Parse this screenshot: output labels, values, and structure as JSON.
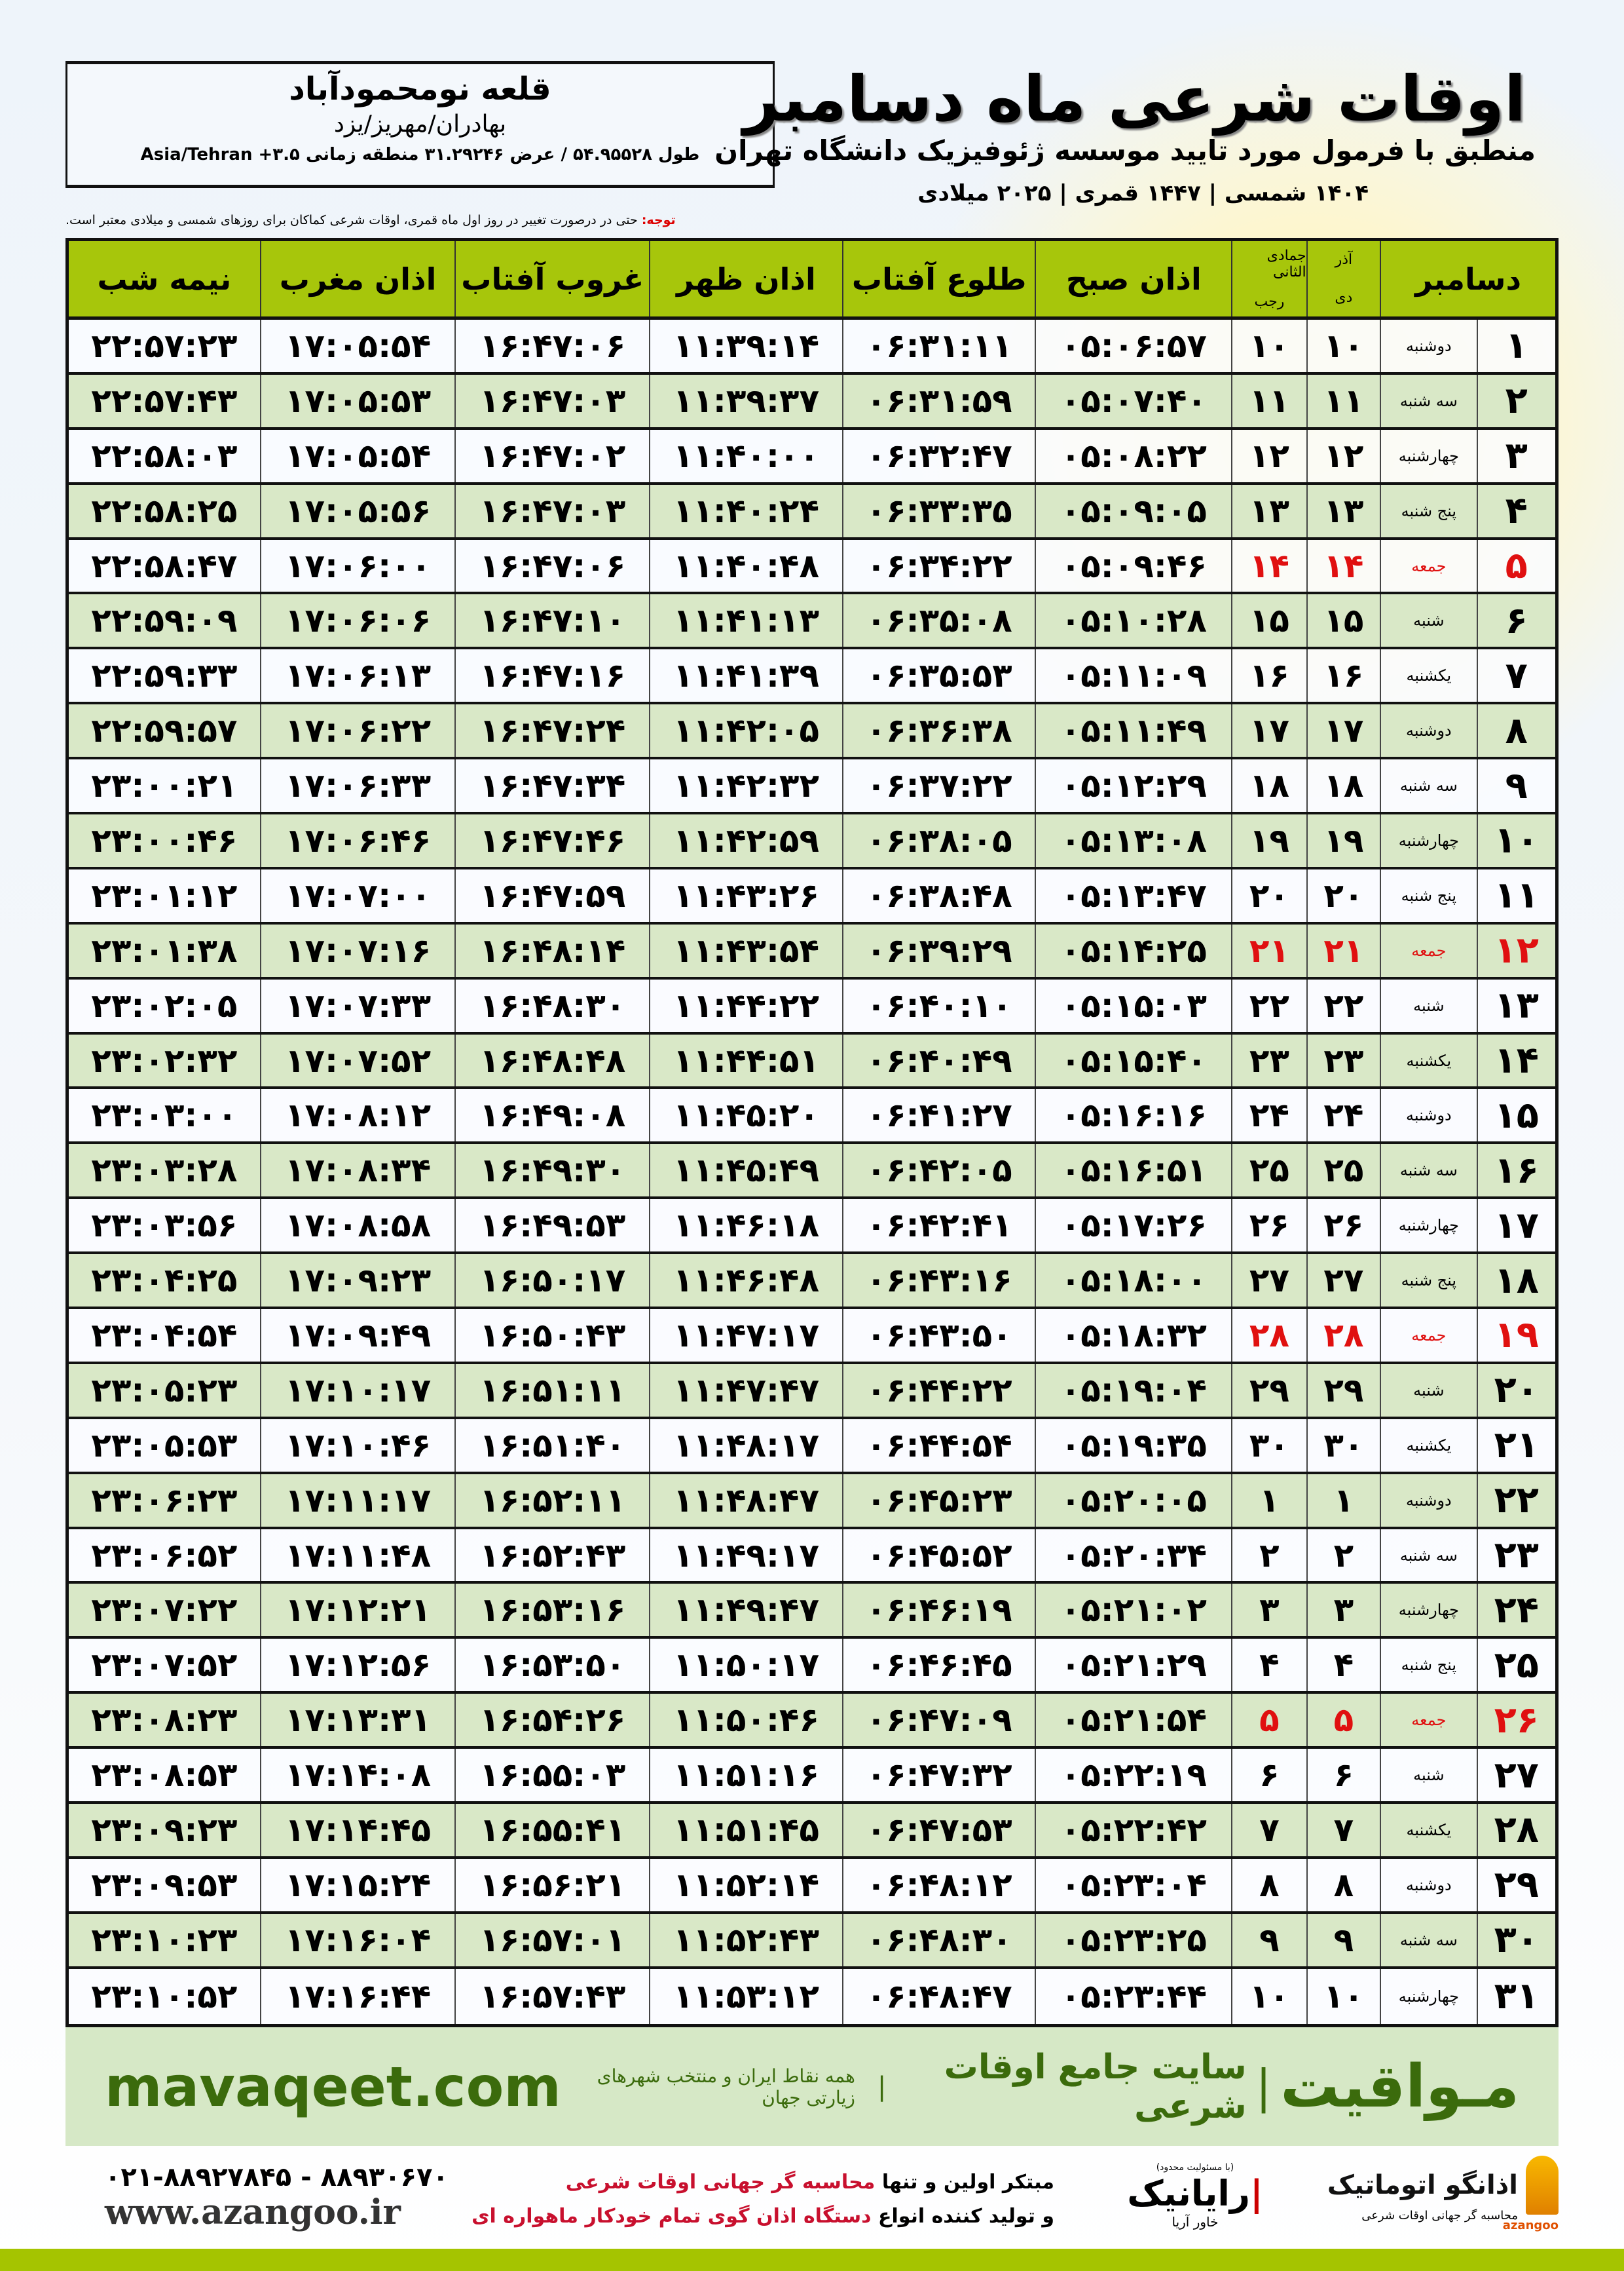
{
  "header": {
    "title": "اوقات شرعی ماه دسامبر",
    "subtitle": "منطبق با فرمول مورد تایید موسسه ژئوفیزیک دانشگاه تهران",
    "dateline": "۱۴۰۴ شمسی | ۱۴۴۷ قمری | ۲۰۲۵ میلادی",
    "location": {
      "city": "قلعه نومحمودآباد",
      "region": "بهادران/مهریز/یزد",
      "coords": "طول ۵۴.۹۵۵۲۸ / عرض ۳۱.۲۹۲۴۶ منطقه زمانی Asia/Tehran +۳.۵"
    },
    "note_label": "توجه:",
    "note": "حتی در درصورت تغییر در روز اول ماه قمری، اوقات شرعی کماکان برای روزهای شمسی و میلادی معتبر است."
  },
  "table": {
    "columns": {
      "day": "دسامبر",
      "dey": "آذر",
      "dey2": "دی",
      "rajab": "جمادی الثانی",
      "rajab2": "رجب",
      "fajr": "اذان صبح",
      "sunrise": "طلوع آفتاب",
      "dhuhr": "اذان ظهر",
      "sunset": "غروب آفتاب",
      "maghrib": "اذان مغرب",
      "midnight": "نیمه شب"
    },
    "holiday_color": "#e01010",
    "rows": [
      {
        "day": "۱",
        "wd": "دوشنبه",
        "dey": "۱۰",
        "rajab": "۱۰",
        "fajr": "۰۵:۰۶:۵۷",
        "sunrise": "۰۶:۳۱:۱۱",
        "dhuhr": "۱۱:۳۹:۱۴",
        "sunset": "۱۶:۴۷:۰۶",
        "maghrib": "۱۷:۰۵:۵۴",
        "midnight": "۲۲:۵۷:۲۳"
      },
      {
        "day": "۲",
        "wd": "سه شنبه",
        "dey": "۱۱",
        "rajab": "۱۱",
        "fajr": "۰۵:۰۷:۴۰",
        "sunrise": "۰۶:۳۱:۵۹",
        "dhuhr": "۱۱:۳۹:۳۷",
        "sunset": "۱۶:۴۷:۰۳",
        "maghrib": "۱۷:۰۵:۵۳",
        "midnight": "۲۲:۵۷:۴۳"
      },
      {
        "day": "۳",
        "wd": "چهارشنبه",
        "dey": "۱۲",
        "rajab": "۱۲",
        "fajr": "۰۵:۰۸:۲۲",
        "sunrise": "۰۶:۳۲:۴۷",
        "dhuhr": "۱۱:۴۰:۰۰",
        "sunset": "۱۶:۴۷:۰۲",
        "maghrib": "۱۷:۰۵:۵۴",
        "midnight": "۲۲:۵۸:۰۳"
      },
      {
        "day": "۴",
        "wd": "پنج شنبه",
        "dey": "۱۳",
        "rajab": "۱۳",
        "fajr": "۰۵:۰۹:۰۵",
        "sunrise": "۰۶:۳۳:۳۵",
        "dhuhr": "۱۱:۴۰:۲۴",
        "sunset": "۱۶:۴۷:۰۳",
        "maghrib": "۱۷:۰۵:۵۶",
        "midnight": "۲۲:۵۸:۲۵"
      },
      {
        "day": "۵",
        "wd": "جمعه",
        "dey": "۱۴",
        "rajab": "۱۴",
        "fajr": "۰۵:۰۹:۴۶",
        "sunrise": "۰۶:۳۴:۲۲",
        "dhuhr": "۱۱:۴۰:۴۸",
        "sunset": "۱۶:۴۷:۰۶",
        "maghrib": "۱۷:۰۶:۰۰",
        "midnight": "۲۲:۵۸:۴۷",
        "holiday": true
      },
      {
        "day": "۶",
        "wd": "شنبه",
        "dey": "۱۵",
        "rajab": "۱۵",
        "fajr": "۰۵:۱۰:۲۸",
        "sunrise": "۰۶:۳۵:۰۸",
        "dhuhr": "۱۱:۴۱:۱۳",
        "sunset": "۱۶:۴۷:۱۰",
        "maghrib": "۱۷:۰۶:۰۶",
        "midnight": "۲۲:۵۹:۰۹"
      },
      {
        "day": "۷",
        "wd": "یکشنبه",
        "dey": "۱۶",
        "rajab": "۱۶",
        "fajr": "۰۵:۱۱:۰۹",
        "sunrise": "۰۶:۳۵:۵۳",
        "dhuhr": "۱۱:۴۱:۳۹",
        "sunset": "۱۶:۴۷:۱۶",
        "maghrib": "۱۷:۰۶:۱۳",
        "midnight": "۲۲:۵۹:۳۳"
      },
      {
        "day": "۸",
        "wd": "دوشنبه",
        "dey": "۱۷",
        "rajab": "۱۷",
        "fajr": "۰۵:۱۱:۴۹",
        "sunrise": "۰۶:۳۶:۳۸",
        "dhuhr": "۱۱:۴۲:۰۵",
        "sunset": "۱۶:۴۷:۲۴",
        "maghrib": "۱۷:۰۶:۲۲",
        "midnight": "۲۲:۵۹:۵۷"
      },
      {
        "day": "۹",
        "wd": "سه شنبه",
        "dey": "۱۸",
        "rajab": "۱۸",
        "fajr": "۰۵:۱۲:۲۹",
        "sunrise": "۰۶:۳۷:۲۲",
        "dhuhr": "۱۱:۴۲:۳۲",
        "sunset": "۱۶:۴۷:۳۴",
        "maghrib": "۱۷:۰۶:۳۳",
        "midnight": "۲۳:۰۰:۲۱"
      },
      {
        "day": "۱۰",
        "wd": "چهارشنبه",
        "dey": "۱۹",
        "rajab": "۱۹",
        "fajr": "۰۵:۱۳:۰۸",
        "sunrise": "۰۶:۳۸:۰۵",
        "dhuhr": "۱۱:۴۲:۵۹",
        "sunset": "۱۶:۴۷:۴۶",
        "maghrib": "۱۷:۰۶:۴۶",
        "midnight": "۲۳:۰۰:۴۶"
      },
      {
        "day": "۱۱",
        "wd": "پنج شنبه",
        "dey": "۲۰",
        "rajab": "۲۰",
        "fajr": "۰۵:۱۳:۴۷",
        "sunrise": "۰۶:۳۸:۴۸",
        "dhuhr": "۱۱:۴۳:۲۶",
        "sunset": "۱۶:۴۷:۵۹",
        "maghrib": "۱۷:۰۷:۰۰",
        "midnight": "۲۳:۰۱:۱۲"
      },
      {
        "day": "۱۲",
        "wd": "جمعه",
        "dey": "۲۱",
        "rajab": "۲۱",
        "fajr": "۰۵:۱۴:۲۵",
        "sunrise": "۰۶:۳۹:۲۹",
        "dhuhr": "۱۱:۴۳:۵۴",
        "sunset": "۱۶:۴۸:۱۴",
        "maghrib": "۱۷:۰۷:۱۶",
        "midnight": "۲۳:۰۱:۳۸",
        "holiday": true
      },
      {
        "day": "۱۳",
        "wd": "شنبه",
        "dey": "۲۲",
        "rajab": "۲۲",
        "fajr": "۰۵:۱۵:۰۳",
        "sunrise": "۰۶:۴۰:۱۰",
        "dhuhr": "۱۱:۴۴:۲۲",
        "sunset": "۱۶:۴۸:۳۰",
        "maghrib": "۱۷:۰۷:۳۳",
        "midnight": "۲۳:۰۲:۰۵"
      },
      {
        "day": "۱۴",
        "wd": "یکشنبه",
        "dey": "۲۳",
        "rajab": "۲۳",
        "fajr": "۰۵:۱۵:۴۰",
        "sunrise": "۰۶:۴۰:۴۹",
        "dhuhr": "۱۱:۴۴:۵۱",
        "sunset": "۱۶:۴۸:۴۸",
        "maghrib": "۱۷:۰۷:۵۲",
        "midnight": "۲۳:۰۲:۳۲"
      },
      {
        "day": "۱۵",
        "wd": "دوشنبه",
        "dey": "۲۴",
        "rajab": "۲۴",
        "fajr": "۰۵:۱۶:۱۶",
        "sunrise": "۰۶:۴۱:۲۷",
        "dhuhr": "۱۱:۴۵:۲۰",
        "sunset": "۱۶:۴۹:۰۸",
        "maghrib": "۱۷:۰۸:۱۲",
        "midnight": "۲۳:۰۳:۰۰"
      },
      {
        "day": "۱۶",
        "wd": "سه شنبه",
        "dey": "۲۵",
        "rajab": "۲۵",
        "fajr": "۰۵:۱۶:۵۱",
        "sunrise": "۰۶:۴۲:۰۵",
        "dhuhr": "۱۱:۴۵:۴۹",
        "sunset": "۱۶:۴۹:۳۰",
        "maghrib": "۱۷:۰۸:۳۴",
        "midnight": "۲۳:۰۳:۲۸"
      },
      {
        "day": "۱۷",
        "wd": "چهارشنبه",
        "dey": "۲۶",
        "rajab": "۲۶",
        "fajr": "۰۵:۱۷:۲۶",
        "sunrise": "۰۶:۴۲:۴۱",
        "dhuhr": "۱۱:۴۶:۱۸",
        "sunset": "۱۶:۴۹:۵۳",
        "maghrib": "۱۷:۰۸:۵۸",
        "midnight": "۲۳:۰۳:۵۶"
      },
      {
        "day": "۱۸",
        "wd": "پنج شنبه",
        "dey": "۲۷",
        "rajab": "۲۷",
        "fajr": "۰۵:۱۸:۰۰",
        "sunrise": "۰۶:۴۳:۱۶",
        "dhuhr": "۱۱:۴۶:۴۸",
        "sunset": "۱۶:۵۰:۱۷",
        "maghrib": "۱۷:۰۹:۲۳",
        "midnight": "۲۳:۰۴:۲۵"
      },
      {
        "day": "۱۹",
        "wd": "جمعه",
        "dey": "۲۸",
        "rajab": "۲۸",
        "fajr": "۰۵:۱۸:۳۲",
        "sunrise": "۰۶:۴۳:۵۰",
        "dhuhr": "۱۱:۴۷:۱۷",
        "sunset": "۱۶:۵۰:۴۳",
        "maghrib": "۱۷:۰۹:۴۹",
        "midnight": "۲۳:۰۴:۵۴",
        "holiday": true
      },
      {
        "day": "۲۰",
        "wd": "شنبه",
        "dey": "۲۹",
        "rajab": "۲۹",
        "fajr": "۰۵:۱۹:۰۴",
        "sunrise": "۰۶:۴۴:۲۲",
        "dhuhr": "۱۱:۴۷:۴۷",
        "sunset": "۱۶:۵۱:۱۱",
        "maghrib": "۱۷:۱۰:۱۷",
        "midnight": "۲۳:۰۵:۲۳"
      },
      {
        "day": "۲۱",
        "wd": "یکشنبه",
        "dey": "۳۰",
        "rajab": "۳۰",
        "fajr": "۰۵:۱۹:۳۵",
        "sunrise": "۰۶:۴۴:۵۴",
        "dhuhr": "۱۱:۴۸:۱۷",
        "sunset": "۱۶:۵۱:۴۰",
        "maghrib": "۱۷:۱۰:۴۶",
        "midnight": "۲۳:۰۵:۵۳"
      },
      {
        "day": "۲۲",
        "wd": "دوشنبه",
        "dey": "۱",
        "rajab": "۱",
        "fajr": "۰۵:۲۰:۰۵",
        "sunrise": "۰۶:۴۵:۲۳",
        "dhuhr": "۱۱:۴۸:۴۷",
        "sunset": "۱۶:۵۲:۱۱",
        "maghrib": "۱۷:۱۱:۱۷",
        "midnight": "۲۳:۰۶:۲۳"
      },
      {
        "day": "۲۳",
        "wd": "سه شنبه",
        "dey": "۲",
        "rajab": "۲",
        "fajr": "۰۵:۲۰:۳۴",
        "sunrise": "۰۶:۴۵:۵۲",
        "dhuhr": "۱۱:۴۹:۱۷",
        "sunset": "۱۶:۵۲:۴۳",
        "maghrib": "۱۷:۱۱:۴۸",
        "midnight": "۲۳:۰۶:۵۲"
      },
      {
        "day": "۲۴",
        "wd": "چهارشنبه",
        "dey": "۳",
        "rajab": "۳",
        "fajr": "۰۵:۲۱:۰۲",
        "sunrise": "۰۶:۴۶:۱۹",
        "dhuhr": "۱۱:۴۹:۴۷",
        "sunset": "۱۶:۵۳:۱۶",
        "maghrib": "۱۷:۱۲:۲۱",
        "midnight": "۲۳:۰۷:۲۲"
      },
      {
        "day": "۲۵",
        "wd": "پنج شنبه",
        "dey": "۴",
        "rajab": "۴",
        "fajr": "۰۵:۲۱:۲۹",
        "sunrise": "۰۶:۴۶:۴۵",
        "dhuhr": "۱۱:۵۰:۱۷",
        "sunset": "۱۶:۵۳:۵۰",
        "maghrib": "۱۷:۱۲:۵۶",
        "midnight": "۲۳:۰۷:۵۲"
      },
      {
        "day": "۲۶",
        "wd": "جمعه",
        "dey": "۵",
        "rajab": "۵",
        "fajr": "۰۵:۲۱:۵۴",
        "sunrise": "۰۶:۴۷:۰۹",
        "dhuhr": "۱۱:۵۰:۴۶",
        "sunset": "۱۶:۵۴:۲۶",
        "maghrib": "۱۷:۱۳:۳۱",
        "midnight": "۲۳:۰۸:۲۳",
        "holiday": true
      },
      {
        "day": "۲۷",
        "wd": "شنبه",
        "dey": "۶",
        "rajab": "۶",
        "fajr": "۰۵:۲۲:۱۹",
        "sunrise": "۰۶:۴۷:۳۲",
        "dhuhr": "۱۱:۵۱:۱۶",
        "sunset": "۱۶:۵۵:۰۳",
        "maghrib": "۱۷:۱۴:۰۸",
        "midnight": "۲۳:۰۸:۵۳"
      },
      {
        "day": "۲۸",
        "wd": "یکشنبه",
        "dey": "۷",
        "rajab": "۷",
        "fajr": "۰۵:۲۲:۴۲",
        "sunrise": "۰۶:۴۷:۵۳",
        "dhuhr": "۱۱:۵۱:۴۵",
        "sunset": "۱۶:۵۵:۴۱",
        "maghrib": "۱۷:۱۴:۴۵",
        "midnight": "۲۳:۰۹:۲۳"
      },
      {
        "day": "۲۹",
        "wd": "دوشنبه",
        "dey": "۸",
        "rajab": "۸",
        "fajr": "۰۵:۲۳:۰۴",
        "sunrise": "۰۶:۴۸:۱۲",
        "dhuhr": "۱۱:۵۲:۱۴",
        "sunset": "۱۶:۵۶:۲۱",
        "maghrib": "۱۷:۱۵:۲۴",
        "midnight": "۲۳:۰۹:۵۳"
      },
      {
        "day": "۳۰",
        "wd": "سه شنبه",
        "dey": "۹",
        "rajab": "۹",
        "fajr": "۰۵:۲۳:۲۵",
        "sunrise": "۰۶:۴۸:۳۰",
        "dhuhr": "۱۱:۵۲:۴۳",
        "sunset": "۱۶:۵۷:۰۱",
        "maghrib": "۱۷:۱۶:۰۴",
        "midnight": "۲۳:۱۰:۲۳"
      },
      {
        "day": "۳۱",
        "wd": "چهارشنبه",
        "dey": "۱۰",
        "rajab": "۱۰",
        "fajr": "۰۵:۲۳:۴۴",
        "sunrise": "۰۶:۴۸:۴۷",
        "dhuhr": "۱۱:۵۳:۱۲",
        "sunset": "۱۶:۵۷:۴۳",
        "maghrib": "۱۷:۱۶:۴۴",
        "midnight": "۲۳:۱۰:۵۲"
      }
    ]
  },
  "band": {
    "brand": "مـواقیت",
    "tagline": "سایت جامع اوقات شرعی",
    "tagline2": "همه نقاط ایران و منتخب شهرهای زیارتی جهان",
    "site": "mavaqeet.com",
    "color": "#3b6b0c"
  },
  "footer": {
    "logo_name": "اذانگو اتوماتیک",
    "logo_sub": "محاسبه گر جهانی اوقات شرعی",
    "logo_en": "azangoo",
    "rayanik_note": "(با مسئولیت محدود)",
    "rayanik": "رایانیک",
    "rayanik_sub": "خاور آریا",
    "promo_1a": "مبتکر اولین و تنها ",
    "promo_1b": "محاسبه گر جهانی اوقات شرعی",
    "promo_2a": "و تولید کننده انواع ",
    "promo_2b": "دستگاه اذان گوی تمام خودکار ماهواره ای",
    "phone": "۰۲۱-۸۸۹۲۷۸۴۵ - ۸۸۹۳۰۶۷۰",
    "url": "www.azangoo.ir",
    "accent": "#c8102e"
  }
}
